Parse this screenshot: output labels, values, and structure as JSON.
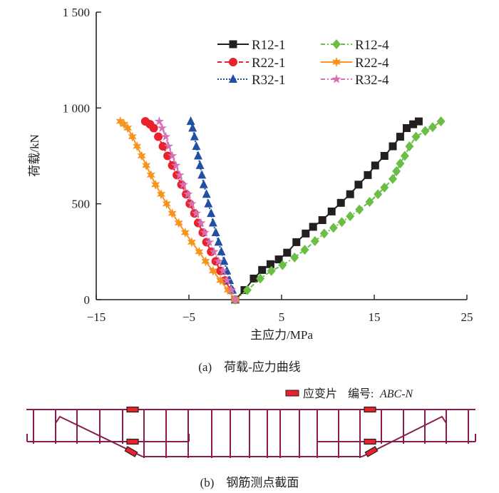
{
  "chart_data": {
    "type": "line",
    "title": "",
    "xlabel": "主应力/MPa",
    "ylabel": "荷载/kN",
    "xlim": [
      -15,
      25
    ],
    "ylim": [
      0,
      1500
    ],
    "xticks": [
      -15,
      -5,
      5,
      15,
      25
    ],
    "xtick_labels": [
      "−15",
      "−5",
      "5",
      "15",
      "25"
    ],
    "yticks": [
      0,
      500,
      1000,
      1500
    ],
    "ytick_labels": [
      "0",
      "500",
      "1 000",
      "1 500"
    ],
    "grid": false,
    "legend_position": "top-right",
    "series": [
      {
        "name": "R12-1",
        "color": "#231f20",
        "marker": "square",
        "dash": "solid",
        "x": [
          0,
          1.0,
          2.0,
          2.9,
          3.8,
          4.7,
          5.6,
          6.6,
          7.6,
          8.4,
          9.4,
          10.4,
          11.4,
          12.4,
          13.3,
          14.3,
          15.1,
          16.1,
          17.0,
          17.8,
          18.5,
          19.2,
          19.8
        ],
        "y": [
          0,
          50,
          110,
          155,
          185,
          210,
          245,
          300,
          345,
          380,
          415,
          460,
          505,
          550,
          600,
          650,
          700,
          750,
          800,
          850,
          895,
          915,
          930
        ]
      },
      {
        "name": "R22-1",
        "color": "#e8212a",
        "marker": "circle",
        "dash": "dash",
        "x": [
          0,
          -0.5,
          -1.1,
          -1.6,
          -2.1,
          -2.6,
          -3.1,
          -3.5,
          -4.0,
          -4.4,
          -4.9,
          -5.3,
          -5.8,
          -6.3,
          -6.8,
          -7.3,
          -7.8,
          -8.3,
          -8.8,
          -9.2,
          -9.7
        ],
        "y": [
          0,
          50,
          100,
          150,
          200,
          250,
          300,
          350,
          400,
          450,
          500,
          550,
          600,
          650,
          700,
          750,
          800,
          850,
          895,
          915,
          930
        ]
      },
      {
        "name": "R32-1",
        "color": "#2150a3",
        "marker": "triangle",
        "dash": "dot",
        "x": [
          0,
          -0.3,
          -0.6,
          -0.9,
          -1.2,
          -1.5,
          -1.8,
          -2.1,
          -2.4,
          -2.6,
          -2.9,
          -3.1,
          -3.4,
          -3.6,
          -3.8,
          -4.0,
          -4.2,
          -4.4,
          -4.6,
          -4.8
        ],
        "y": [
          0,
          50,
          100,
          150,
          200,
          250,
          300,
          350,
          400,
          450,
          500,
          550,
          600,
          650,
          700,
          750,
          800,
          850,
          895,
          930
        ]
      },
      {
        "name": "R12-4",
        "color": "#6abd45",
        "marker": "diamond",
        "dash": "dashdot",
        "x": [
          0,
          1.3,
          2.7,
          3.9,
          5.1,
          6.4,
          7.5,
          8.6,
          9.6,
          10.6,
          11.5,
          12.4,
          13.4,
          14.5,
          15.4,
          16.1,
          17.0,
          17.4,
          17.8,
          18.3,
          18.8,
          19.5,
          20.5,
          21.3,
          22.2
        ],
        "y": [
          0,
          50,
          110,
          150,
          180,
          220,
          260,
          305,
          345,
          375,
          405,
          435,
          470,
          510,
          550,
          585,
          630,
          670,
          710,
          750,
          800,
          850,
          880,
          900,
          930
        ]
      },
      {
        "name": "R22-4",
        "color": "#f7941d",
        "marker": "star6",
        "dash": "solid",
        "x": [
          0,
          -0.8,
          -1.6,
          -2.4,
          -3.2,
          -3.9,
          -4.7,
          -5.4,
          -6.1,
          -6.8,
          -7.4,
          -8.0,
          -8.6,
          -9.1,
          -9.6,
          -10.1,
          -10.6,
          -11.1,
          -11.6,
          -12.0,
          -12.4
        ],
        "y": [
          0,
          50,
          100,
          150,
          200,
          250,
          300,
          350,
          400,
          450,
          500,
          550,
          600,
          650,
          700,
          750,
          800,
          850,
          895,
          915,
          930
        ]
      },
      {
        "name": "R32-4",
        "color": "#d470b3",
        "marker": "star5",
        "dash": "dashdot",
        "x": [
          0,
          -0.4,
          -0.9,
          -1.3,
          -1.8,
          -2.3,
          -2.8,
          -3.3,
          -3.7,
          -4.2,
          -4.7,
          -5.1,
          -5.6,
          -6.0,
          -6.4,
          -6.8,
          -7.2,
          -7.5,
          -7.9,
          -8.2
        ],
        "y": [
          0,
          50,
          100,
          150,
          200,
          250,
          300,
          350,
          400,
          450,
          500,
          550,
          600,
          650,
          700,
          750,
          800,
          850,
          895,
          930
        ]
      }
    ]
  },
  "captions": {
    "a": "(a)　荷载-应力曲线",
    "b": "(b)　钢筋测点截面"
  },
  "beam": {
    "legend_label": "应变片",
    "numbering_prefix": "编号:",
    "numbering_format": "ABC-N",
    "rebar_color": "#8b1a4f",
    "gauge_color": "#e8212a"
  }
}
